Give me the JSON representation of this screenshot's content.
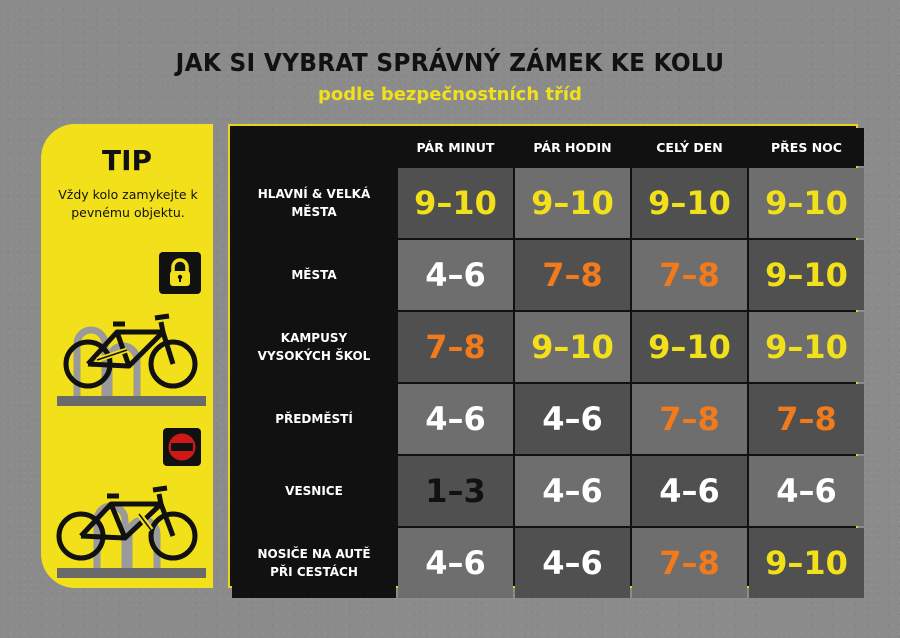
{
  "title": "JAK SI VYBRAT SPRÁVNÝ ZÁMEK KE KOLU",
  "subtitle": "podle bezpečnostních tříd",
  "tip": {
    "title": "TIP",
    "text": "Vždy kolo zamykejte k pevnému objektu."
  },
  "icons": {
    "lock": "padlock-icon",
    "no": "prohibited-icon",
    "bike_locked": "bicycle-locked-to-rack",
    "bike_wrong": "bicycle-locked-wrong"
  },
  "colors": {
    "yellow": "#f2e01a",
    "orange": "#f07a1c",
    "white": "#ffffff",
    "black": "#111111",
    "ban_red": "#d01818"
  },
  "table": {
    "columns": [
      "PÁR MINUT",
      "PÁR HODIN",
      "CELÝ DEN",
      "PŘES NOC"
    ],
    "rows": [
      {
        "label": "HLAVNÍ & VELKÁ\nMĚSTA",
        "values": [
          "9–10",
          "9–10",
          "9–10",
          "9–10"
        ],
        "colors": [
          "yellow",
          "yellow",
          "yellow",
          "yellow"
        ]
      },
      {
        "label": "MĚSTA",
        "values": [
          "4–6",
          "7–8",
          "7–8",
          "9–10"
        ],
        "colors": [
          "white",
          "orange",
          "orange",
          "yellow"
        ]
      },
      {
        "label": "KAMPUSY\nVYSOKÝCH ŠKOL",
        "values": [
          "7–8",
          "9–10",
          "9–10",
          "9–10"
        ],
        "colors": [
          "orange",
          "yellow",
          "yellow",
          "yellow"
        ]
      },
      {
        "label": "PŘEDMĚSTÍ",
        "values": [
          "4–6",
          "4–6",
          "7–8",
          "7–8"
        ],
        "colors": [
          "white",
          "white",
          "orange",
          "orange"
        ]
      },
      {
        "label": "VESNICE",
        "values": [
          "1–3",
          "4–6",
          "4–6",
          "4–6"
        ],
        "colors": [
          "black",
          "white",
          "white",
          "white"
        ]
      },
      {
        "label": "NOSIČE NA AUTĚ\nPŘI CESTÁCH",
        "values": [
          "4–6",
          "4–6",
          "7–8",
          "9–10"
        ],
        "colors": [
          "white",
          "white",
          "orange",
          "yellow"
        ]
      }
    ]
  }
}
